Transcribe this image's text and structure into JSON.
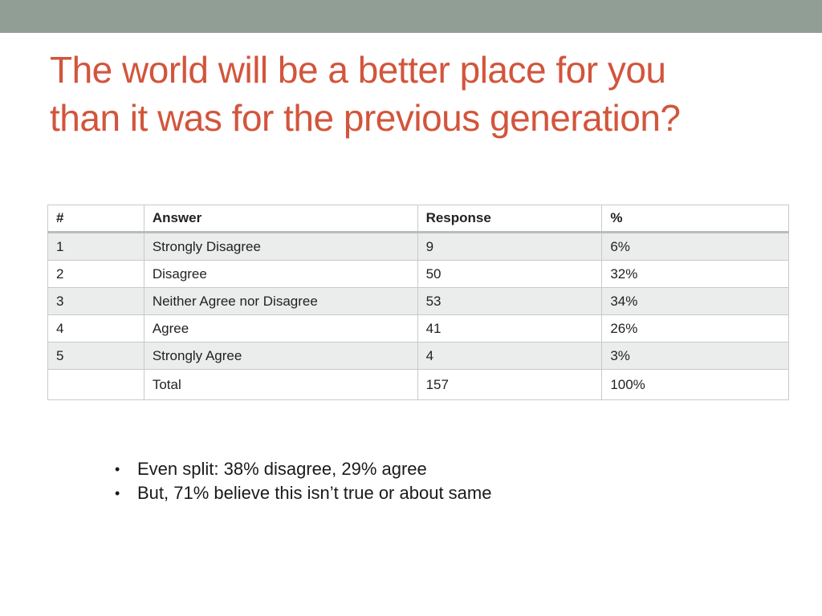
{
  "slide": {
    "title_lines": [
      "The world will be a better place for you",
      "than it was for the previous generation?"
    ]
  },
  "table": {
    "headers": [
      "#",
      "Answer",
      "Response",
      "%"
    ],
    "rows": [
      [
        "1",
        "Strongly Disagree",
        "9",
        "6%"
      ],
      [
        "2",
        "Disagree",
        "50",
        "32%"
      ],
      [
        "3",
        "Neither Agree nor Disagree",
        "53",
        "34%"
      ],
      [
        "4",
        "Agree",
        "41",
        "26%"
      ],
      [
        "5",
        "Strongly Agree",
        "4",
        "3%"
      ],
      [
        "",
        "Total",
        "157",
        "100%"
      ]
    ]
  },
  "bullets": [
    "Even split: 38% disagree, 29% agree",
    "But, 71% believe this isn’t true or about same"
  ],
  "bullet_marker": "•",
  "colors": {
    "title": "#d2553c",
    "top_band": "#919e96",
    "row_shade": "#ebecec"
  }
}
